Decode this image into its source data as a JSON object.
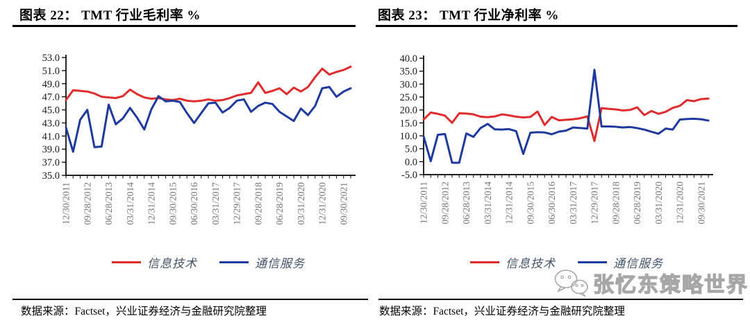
{
  "chart_data": [
    {
      "type": "line",
      "title": "图表 22： TMT 行业毛利率 %",
      "source_note": "数据来源：Factset，兴业证券经济与金融研究院整理",
      "grid": false,
      "legend_position": "bottom",
      "ylim": [
        35.0,
        53.0
      ],
      "yticks": [
        "53.0",
        "51.0",
        "49.0",
        "47.0",
        "45.0",
        "43.0",
        "41.0",
        "39.0",
        "37.0",
        "35.0"
      ],
      "x_tick_interval": 3,
      "x_tick_labels": [
        "12/30/2011",
        "09/28/2012",
        "06/28/2013",
        "03/31/2014",
        "12/31/2014",
        "09/30/2015",
        "06/30/2016",
        "03/31/2017",
        "12/29/2017",
        "09/28/2018",
        "06/28/2019",
        "03/31/2020",
        "12/31/2020",
        "09/30/2021"
      ],
      "series": [
        {
          "name": "信息技术",
          "color": "#e02c2c",
          "values": [
            46.5,
            48.0,
            47.9,
            47.8,
            47.5,
            47.0,
            46.9,
            46.8,
            47.1,
            48.1,
            47.4,
            46.9,
            46.7,
            46.8,
            46.6,
            46.5,
            46.7,
            46.4,
            46.3,
            46.4,
            46.6,
            46.4,
            46.5,
            46.8,
            47.2,
            47.4,
            47.6,
            49.2,
            47.6,
            47.9,
            48.3,
            47.4,
            48.4,
            47.8,
            48.5,
            50.0,
            51.3,
            50.4,
            50.8,
            51.1,
            51.6
          ]
        },
        {
          "name": "通信服务",
          "color": "#1f3a9e",
          "values": [
            42.3,
            38.6,
            43.5,
            45.0,
            39.3,
            39.4,
            45.8,
            42.8,
            43.7,
            45.3,
            43.8,
            42.0,
            45.1,
            47.1,
            46.3,
            46.4,
            46.2,
            44.5,
            43.0,
            44.5,
            46.0,
            46.1,
            44.6,
            45.3,
            46.4,
            46.6,
            44.7,
            45.6,
            46.1,
            45.9,
            44.7,
            44.0,
            43.3,
            45.2,
            44.2,
            45.6,
            48.3,
            48.5,
            47.0,
            47.8,
            48.3
          ]
        }
      ]
    },
    {
      "type": "line",
      "title": "图表 23： TMT 行业净利率 %",
      "source_note": "数据来源：Factset，兴业证券经济与金融研究院整理",
      "grid": false,
      "legend_position": "bottom",
      "ylim": [
        -5.0,
        40.0
      ],
      "yticks": [
        "40.0",
        "35.0",
        "30.0",
        "25.0",
        "20.0",
        "15.0",
        "10.0",
        "5.0",
        "0.0",
        "-5.0"
      ],
      "x_tick_interval": 3,
      "x_tick_labels": [
        "12/30/2011",
        "09/28/2012",
        "06/28/2013",
        "03/31/2014",
        "12/31/2014",
        "09/30/2015",
        "06/30/2016",
        "03/31/2017",
        "12/29/2017",
        "09/28/2018",
        "06/28/2019",
        "03/31/2020",
        "12/31/2020",
        "09/30/2021"
      ],
      "series": [
        {
          "name": "信息技术",
          "color": "#e02c2c",
          "values": [
            16.3,
            19.0,
            18.5,
            17.8,
            15.0,
            18.7,
            18.6,
            18.3,
            17.4,
            17.2,
            17.5,
            18.3,
            17.9,
            17.4,
            17.1,
            17.3,
            19.4,
            14.2,
            17.3,
            16.0,
            16.2,
            16.4,
            16.8,
            17.5,
            8.0,
            20.7,
            20.4,
            20.2,
            19.8,
            20.0,
            21.0,
            18.0,
            19.6,
            18.5,
            19.3,
            20.8,
            21.6,
            23.8,
            23.4,
            24.2,
            24.4
          ]
        },
        {
          "name": "通信服务",
          "color": "#1f3a9e",
          "values": [
            9.8,
            0.2,
            10.4,
            10.7,
            -0.4,
            -0.4,
            10.9,
            9.6,
            13.0,
            14.6,
            12.5,
            12.4,
            12.6,
            11.8,
            3.0,
            11.2,
            11.4,
            11.3,
            10.6,
            11.6,
            12.0,
            13.2,
            13.0,
            12.8,
            35.5,
            13.6,
            13.6,
            13.5,
            13.2,
            13.4,
            13.0,
            12.4,
            11.6,
            10.8,
            12.8,
            12.4,
            16.3,
            16.5,
            16.6,
            16.4,
            15.9
          ]
        }
      ]
    }
  ],
  "watermark": {
    "text": "张忆东策略世界",
    "icon": "wechat-icon",
    "color": "#a6a6a6"
  }
}
